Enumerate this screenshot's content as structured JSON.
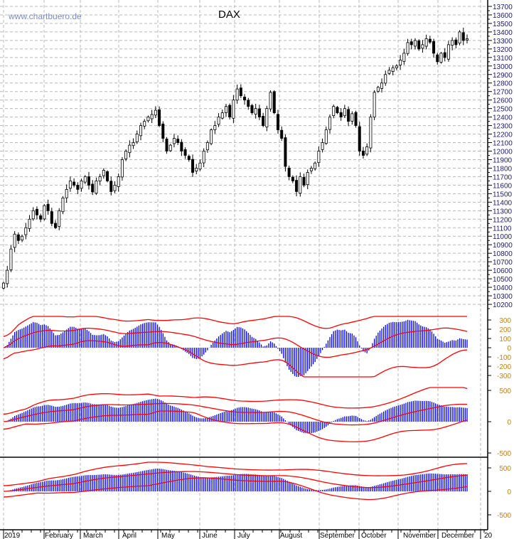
{
  "watermark": "www.chartbuero.de",
  "chart_data": {
    "type": "candlestick",
    "title": "DAX",
    "grid": true,
    "ylim": [
      10200,
      13700
    ],
    "y_ticks": [
      13700,
      13600,
      13500,
      13400,
      13300,
      13200,
      13100,
      13000,
      12900,
      12800,
      12700,
      12600,
      12500,
      12400,
      12300,
      12200,
      12100,
      12000,
      11900,
      11800,
      11700,
      11600,
      11500,
      11400,
      11300,
      11200,
      11100,
      11000,
      10900,
      10800,
      10700,
      10600,
      10500,
      10400,
      10300,
      10200
    ],
    "x_ticks": [
      "2019",
      "February",
      "March",
      "April",
      "May",
      "June",
      "July",
      "August",
      "September",
      "October",
      "November",
      "December",
      "20"
    ],
    "closes": [
      10450,
      10600,
      10850,
      11025,
      10950,
      11000,
      11100,
      11200,
      11300,
      11250,
      11200,
      11360,
      11300,
      11150,
      11100,
      11300,
      11450,
      11550,
      11650,
      11600,
      11550,
      11650,
      11700,
      11600,
      11520,
      11650,
      11700,
      11775,
      11650,
      11525,
      11600,
      11700,
      11900,
      12000,
      12070,
      12100,
      12200,
      12300,
      12350,
      12400,
      12430,
      12480,
      12300,
      12150,
      12000,
      12070,
      12150,
      12100,
      12000,
      11950,
      11900,
      11750,
      11800,
      11860,
      12000,
      12100,
      12250,
      12300,
      12400,
      12450,
      12525,
      12400,
      12600,
      12730,
      12650,
      12600,
      12525,
      12450,
      12500,
      12400,
      12300,
      12500,
      12690,
      12450,
      12250,
      12150,
      11820,
      11700,
      11650,
      11525,
      11700,
      11600,
      11750,
      11800,
      11860,
      12000,
      12100,
      12250,
      12400,
      12525,
      12450,
      12400,
      12500,
      12350,
      12440,
      12300,
      12000,
      11950,
      12050,
      12400,
      12690,
      12750,
      12800,
      12900,
      12950,
      12980,
      13000,
      13070,
      13150,
      13275,
      13250,
      13300,
      13200,
      13250,
      13320,
      13280,
      13150,
      13050,
      13150,
      13100,
      13250,
      13300,
      13250,
      13400,
      13300,
      13320
    ],
    "indicator_panels": [
      {
        "y_ticks": [
          "300",
          "200",
          "100",
          "0",
          "-100",
          "-200",
          "-300"
        ],
        "histogram_color": "#0000ff",
        "band_color": "#ff0000"
      },
      {
        "y_ticks": [
          "500",
          "0",
          "-500"
        ],
        "histogram_color": "#0000ff",
        "band_color": "#ff0000"
      },
      {
        "y_ticks": [
          "500",
          "0",
          "-500"
        ],
        "histogram_color": "#0000ff",
        "band_color": "#ff0000"
      }
    ]
  },
  "colors": {
    "grid": "#b0b0b0",
    "price": "#000000",
    "histogram": "#0000ff",
    "bands": "#ff0000",
    "watermark": "#7a8cc0"
  }
}
